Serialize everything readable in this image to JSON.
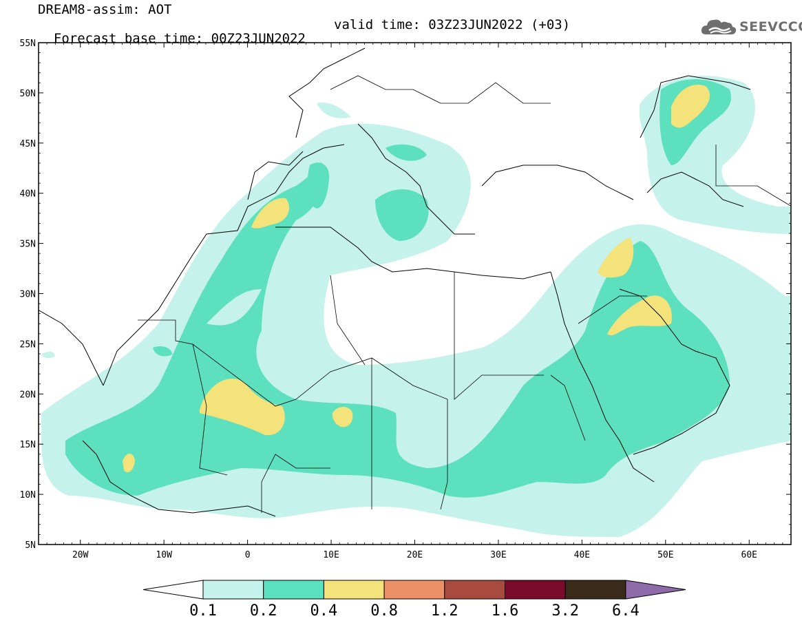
{
  "header": {
    "title": "DREAM8-assim: AOT",
    "base_time": "Forecast base time: 00Z23JUN2022",
    "valid_time": "valid time: 03Z23JUN2022 (+03)",
    "logo_text": "SEEVCCC",
    "logo_icon": "cloud-icon"
  },
  "map": {
    "lat_labels": [
      "55N",
      "50N",
      "45N",
      "40N",
      "35N",
      "30N",
      "25N",
      "20N",
      "15N",
      "10N",
      "5N"
    ],
    "lon_labels": [
      "20W",
      "10W",
      "0",
      "10E",
      "20E",
      "30E",
      "40E",
      "50E",
      "60E"
    ],
    "lat_range": [
      5,
      55
    ],
    "lon_range": [
      -25,
      65
    ],
    "grid": false
  },
  "colorbar": {
    "labels": [
      "0.1",
      "0.2",
      "0.4",
      "0.8",
      "1.2",
      "1.6",
      "3.2",
      "6.4"
    ],
    "colors": [
      "#ffffff",
      "#c6f2ec",
      "#5ce0bd",
      "#f4e27a",
      "#ec9068",
      "#a84a3e",
      "#7a0b2c",
      "#3a2a1a",
      "#8e6aa8"
    ]
  }
}
